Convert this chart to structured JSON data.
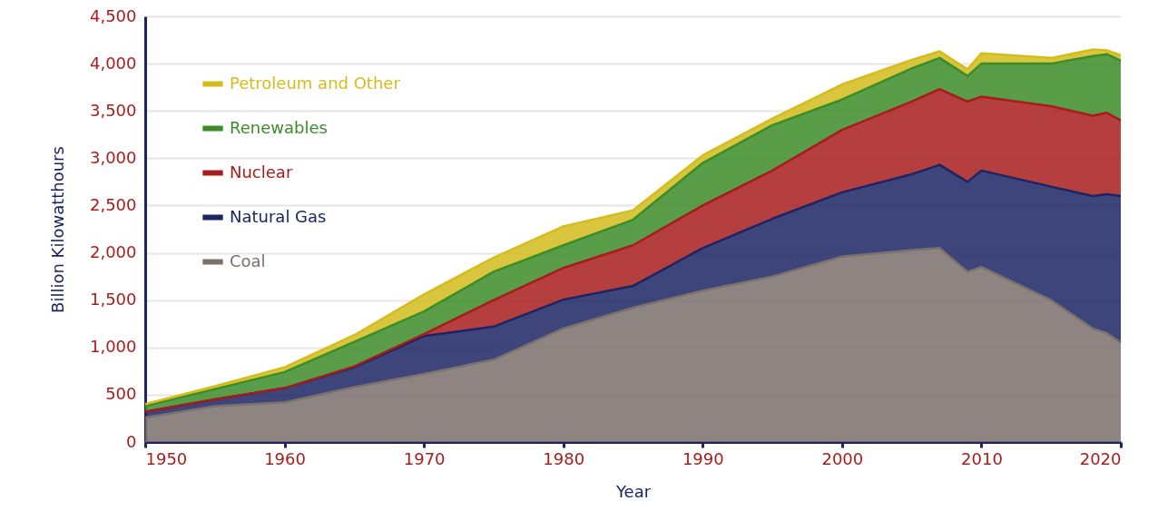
{
  "chart_data": {
    "type": "area",
    "stacked": true,
    "xlabel": "Year",
    "ylabel": "Billion Kilowatthours",
    "x": [
      1950,
      1955,
      1960,
      1965,
      1970,
      1975,
      1980,
      1985,
      1990,
      1995,
      2000,
      2005,
      2007,
      2009,
      2010,
      2015,
      2018,
      2019,
      2020
    ],
    "series": [
      {
        "name": "Coal",
        "color": "#7a706c",
        "values": [
          260,
          380,
          420,
          580,
          720,
          870,
          1200,
          1420,
          1600,
          1750,
          1960,
          2030,
          2050,
          1800,
          1850,
          1500,
          1200,
          1150,
          1050
        ]
      },
      {
        "name": "Natural Gas",
        "color": "#1c2464",
        "values": [
          60,
          70,
          150,
          210,
          400,
          350,
          305,
          230,
          450,
          610,
          680,
          800,
          880,
          950,
          1020,
          1200,
          1400,
          1470,
          1550
        ]
      },
      {
        "name": "Nuclear",
        "color": "#a81c1c",
        "values": [
          0,
          0,
          0,
          10,
          20,
          280,
          335,
          430,
          450,
          510,
          660,
          770,
          800,
          850,
          780,
          850,
          850,
          860,
          800
        ]
      },
      {
        "name": "Renewables",
        "color": "#3c8c28",
        "values": [
          60,
          110,
          170,
          260,
          240,
          300,
          240,
          270,
          450,
          480,
          320,
          350,
          330,
          270,
          350,
          450,
          630,
          620,
          630
        ]
      },
      {
        "name": "Petroleum and Other",
        "color": "#d4bc1c",
        "values": [
          20,
          30,
          50,
          70,
          180,
          150,
          200,
          100,
          80,
          70,
          160,
          90,
          70,
          70,
          110,
          60,
          70,
          40,
          60
        ]
      }
    ],
    "xlim": [
      1950,
      2020
    ],
    "xticks": [
      1950,
      1960,
      1970,
      1980,
      1990,
      2000,
      2010,
      2020
    ],
    "ylim": [
      0,
      4500
    ],
    "yticks": [
      0,
      500,
      {
        "value": 1000,
        "label": "1,000"
      },
      {
        "value": 1500,
        "label": "1,500"
      },
      {
        "value": 2000,
        "label": "2,000"
      },
      {
        "value": 2500,
        "label": "2,500"
      },
      {
        "value": 3000,
        "label": "3,000"
      },
      {
        "value": 3500,
        "label": "3,500"
      },
      {
        "value": 4000,
        "label": "4,000"
      },
      {
        "value": 4500,
        "label": "4,500"
      }
    ],
    "grid": "y",
    "legend": "top left"
  }
}
